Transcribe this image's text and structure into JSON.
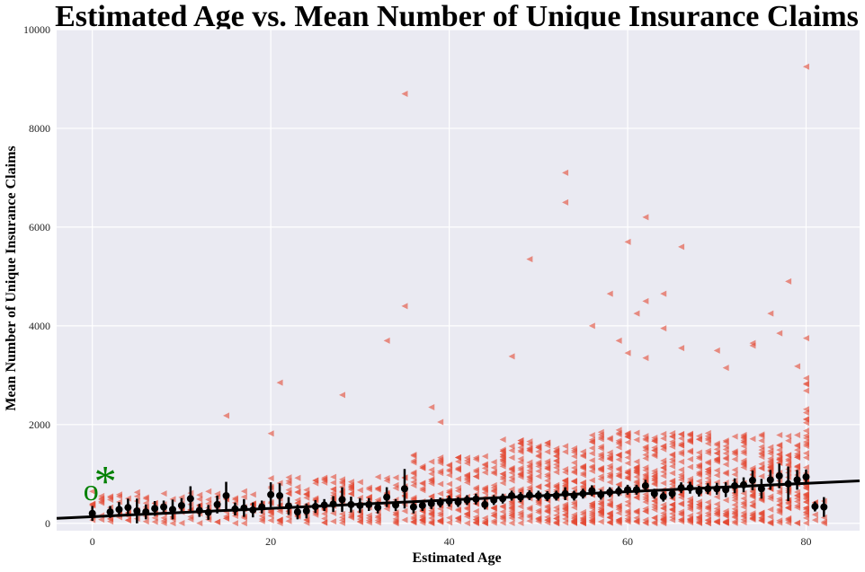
{
  "chart_data": {
    "type": "scatter",
    "title": "Estimated Age vs. Mean Number of Unique Insurance Claims",
    "xlabel": "Estimated Age",
    "ylabel": "Mean Number of Unique Insurance Claims",
    "xlim": [
      -4,
      86
    ],
    "ylim": [
      -150,
      10000
    ],
    "xticks": [
      "0",
      "20",
      "40",
      "60",
      "80"
    ],
    "yticks": [
      "0",
      "2000",
      "4000",
      "6000",
      "8000",
      "10000"
    ],
    "grid": true,
    "background": "#eaeaf2",
    "colors": {
      "scatter": "#e24a33",
      "means": "#000000",
      "fit": "#000000",
      "annotation": "#008000"
    },
    "fit_line": {
      "x": [
        -4,
        86
      ],
      "y": [
        100,
        860
      ]
    },
    "annotations": [
      {
        "text": "o",
        "x": 0,
        "y": 650
      },
      {
        "text": "*",
        "x": 1.2,
        "y": 950
      }
    ],
    "outliers": [
      {
        "x": 80,
        "y": 9250
      },
      {
        "x": 35,
        "y": 8700
      },
      {
        "x": 53,
        "y": 7100
      },
      {
        "x": 53,
        "y": 6500
      },
      {
        "x": 62,
        "y": 6200
      },
      {
        "x": 60,
        "y": 5700
      },
      {
        "x": 66,
        "y": 5600
      },
      {
        "x": 49,
        "y": 5350
      },
      {
        "x": 78,
        "y": 4900
      },
      {
        "x": 58,
        "y": 4650
      },
      {
        "x": 64,
        "y": 4650
      },
      {
        "x": 62,
        "y": 4500
      },
      {
        "x": 61,
        "y": 4250
      },
      {
        "x": 35,
        "y": 4400
      },
      {
        "x": 76,
        "y": 4250
      },
      {
        "x": 56,
        "y": 4000
      },
      {
        "x": 64,
        "y": 3950
      },
      {
        "x": 77,
        "y": 3850
      },
      {
        "x": 33,
        "y": 3700
      },
      {
        "x": 59,
        "y": 3700
      },
      {
        "x": 80,
        "y": 3750
      },
      {
        "x": 74,
        "y": 3650
      },
      {
        "x": 74,
        "y": 3600
      },
      {
        "x": 66,
        "y": 3550
      },
      {
        "x": 70,
        "y": 3500
      },
      {
        "x": 60,
        "y": 3450
      },
      {
        "x": 47,
        "y": 3380
      },
      {
        "x": 62,
        "y": 3350
      },
      {
        "x": 79,
        "y": 3180
      },
      {
        "x": 71,
        "y": 3150
      },
      {
        "x": 21,
        "y": 2850
      },
      {
        "x": 28,
        "y": 2600
      },
      {
        "x": 15,
        "y": 2180
      },
      {
        "x": 20,
        "y": 1820
      },
      {
        "x": 38,
        "y": 2350
      },
      {
        "x": 39,
        "y": 2050
      }
    ],
    "means": [
      {
        "x": 0,
        "y": 200,
        "err": 150
      },
      {
        "x": 2,
        "y": 230,
        "err": 120
      },
      {
        "x": 3,
        "y": 280,
        "err": 150
      },
      {
        "x": 4,
        "y": 320,
        "err": 180
      },
      {
        "x": 5,
        "y": 250,
        "err": 250
      },
      {
        "x": 6,
        "y": 230,
        "err": 150
      },
      {
        "x": 7,
        "y": 300,
        "err": 150
      },
      {
        "x": 8,
        "y": 330,
        "err": 130
      },
      {
        "x": 9,
        "y": 280,
        "err": 200
      },
      {
        "x": 10,
        "y": 360,
        "err": 150
      },
      {
        "x": 11,
        "y": 500,
        "err": 250
      },
      {
        "x": 12,
        "y": 260,
        "err": 130
      },
      {
        "x": 13,
        "y": 220,
        "err": 150
      },
      {
        "x": 14,
        "y": 380,
        "err": 180
      },
      {
        "x": 15,
        "y": 560,
        "err": 280
      },
      {
        "x": 16,
        "y": 290,
        "err": 130
      },
      {
        "x": 17,
        "y": 310,
        "err": 180
      },
      {
        "x": 18,
        "y": 270,
        "err": 150
      },
      {
        "x": 19,
        "y": 330,
        "err": 130
      },
      {
        "x": 20,
        "y": 580,
        "err": 250
      },
      {
        "x": 21,
        "y": 560,
        "err": 250
      },
      {
        "x": 22,
        "y": 350,
        "err": 180
      },
      {
        "x": 23,
        "y": 230,
        "err": 150
      },
      {
        "x": 24,
        "y": 250,
        "err": 150
      },
      {
        "x": 25,
        "y": 340,
        "err": 130
      },
      {
        "x": 26,
        "y": 370,
        "err": 120
      },
      {
        "x": 27,
        "y": 390,
        "err": 160
      },
      {
        "x": 28,
        "y": 480,
        "err": 250
      },
      {
        "x": 29,
        "y": 380,
        "err": 160
      },
      {
        "x": 30,
        "y": 360,
        "err": 150
      },
      {
        "x": 31,
        "y": 380,
        "err": 130
      },
      {
        "x": 32,
        "y": 320,
        "err": 120
      },
      {
        "x": 33,
        "y": 530,
        "err": 200
      },
      {
        "x": 34,
        "y": 370,
        "err": 120
      },
      {
        "x": 35,
        "y": 700,
        "err": 400
      },
      {
        "x": 36,
        "y": 330,
        "err": 130
      },
      {
        "x": 37,
        "y": 360,
        "err": 110
      },
      {
        "x": 38,
        "y": 400,
        "err": 110
      },
      {
        "x": 39,
        "y": 420,
        "err": 100
      },
      {
        "x": 40,
        "y": 450,
        "err": 110
      },
      {
        "x": 41,
        "y": 430,
        "err": 100
      },
      {
        "x": 42,
        "y": 470,
        "err": 100
      },
      {
        "x": 43,
        "y": 490,
        "err": 110
      },
      {
        "x": 44,
        "y": 380,
        "err": 100
      },
      {
        "x": 45,
        "y": 470,
        "err": 100
      },
      {
        "x": 46,
        "y": 500,
        "err": 100
      },
      {
        "x": 47,
        "y": 560,
        "err": 100
      },
      {
        "x": 48,
        "y": 530,
        "err": 100
      },
      {
        "x": 49,
        "y": 570,
        "err": 100
      },
      {
        "x": 50,
        "y": 560,
        "err": 100
      },
      {
        "x": 51,
        "y": 550,
        "err": 100
      },
      {
        "x": 52,
        "y": 560,
        "err": 100
      },
      {
        "x": 53,
        "y": 600,
        "err": 130
      },
      {
        "x": 54,
        "y": 560,
        "err": 100
      },
      {
        "x": 55,
        "y": 600,
        "err": 100
      },
      {
        "x": 56,
        "y": 660,
        "err": 110
      },
      {
        "x": 57,
        "y": 580,
        "err": 100
      },
      {
        "x": 58,
        "y": 630,
        "err": 100
      },
      {
        "x": 59,
        "y": 650,
        "err": 100
      },
      {
        "x": 60,
        "y": 680,
        "err": 100
      },
      {
        "x": 61,
        "y": 680,
        "err": 100
      },
      {
        "x": 62,
        "y": 760,
        "err": 120
      },
      {
        "x": 63,
        "y": 600,
        "err": 100
      },
      {
        "x": 64,
        "y": 540,
        "err": 100
      },
      {
        "x": 65,
        "y": 600,
        "err": 100
      },
      {
        "x": 66,
        "y": 720,
        "err": 110
      },
      {
        "x": 67,
        "y": 720,
        "err": 120
      },
      {
        "x": 68,
        "y": 650,
        "err": 110
      },
      {
        "x": 69,
        "y": 700,
        "err": 110
      },
      {
        "x": 70,
        "y": 700,
        "err": 120
      },
      {
        "x": 71,
        "y": 680,
        "err": 150
      },
      {
        "x": 72,
        "y": 760,
        "err": 150
      },
      {
        "x": 73,
        "y": 780,
        "err": 150
      },
      {
        "x": 74,
        "y": 870,
        "err": 200
      },
      {
        "x": 75,
        "y": 700,
        "err": 200
      },
      {
        "x": 76,
        "y": 880,
        "err": 200
      },
      {
        "x": 77,
        "y": 960,
        "err": 250
      },
      {
        "x": 78,
        "y": 800,
        "err": 350
      },
      {
        "x": 79,
        "y": 880,
        "err": 200
      },
      {
        "x": 80,
        "y": 940,
        "err": 150
      },
      {
        "x": 81,
        "y": 340,
        "err": 100
      },
      {
        "x": 82,
        "y": 330,
        "err": 200
      }
    ]
  }
}
